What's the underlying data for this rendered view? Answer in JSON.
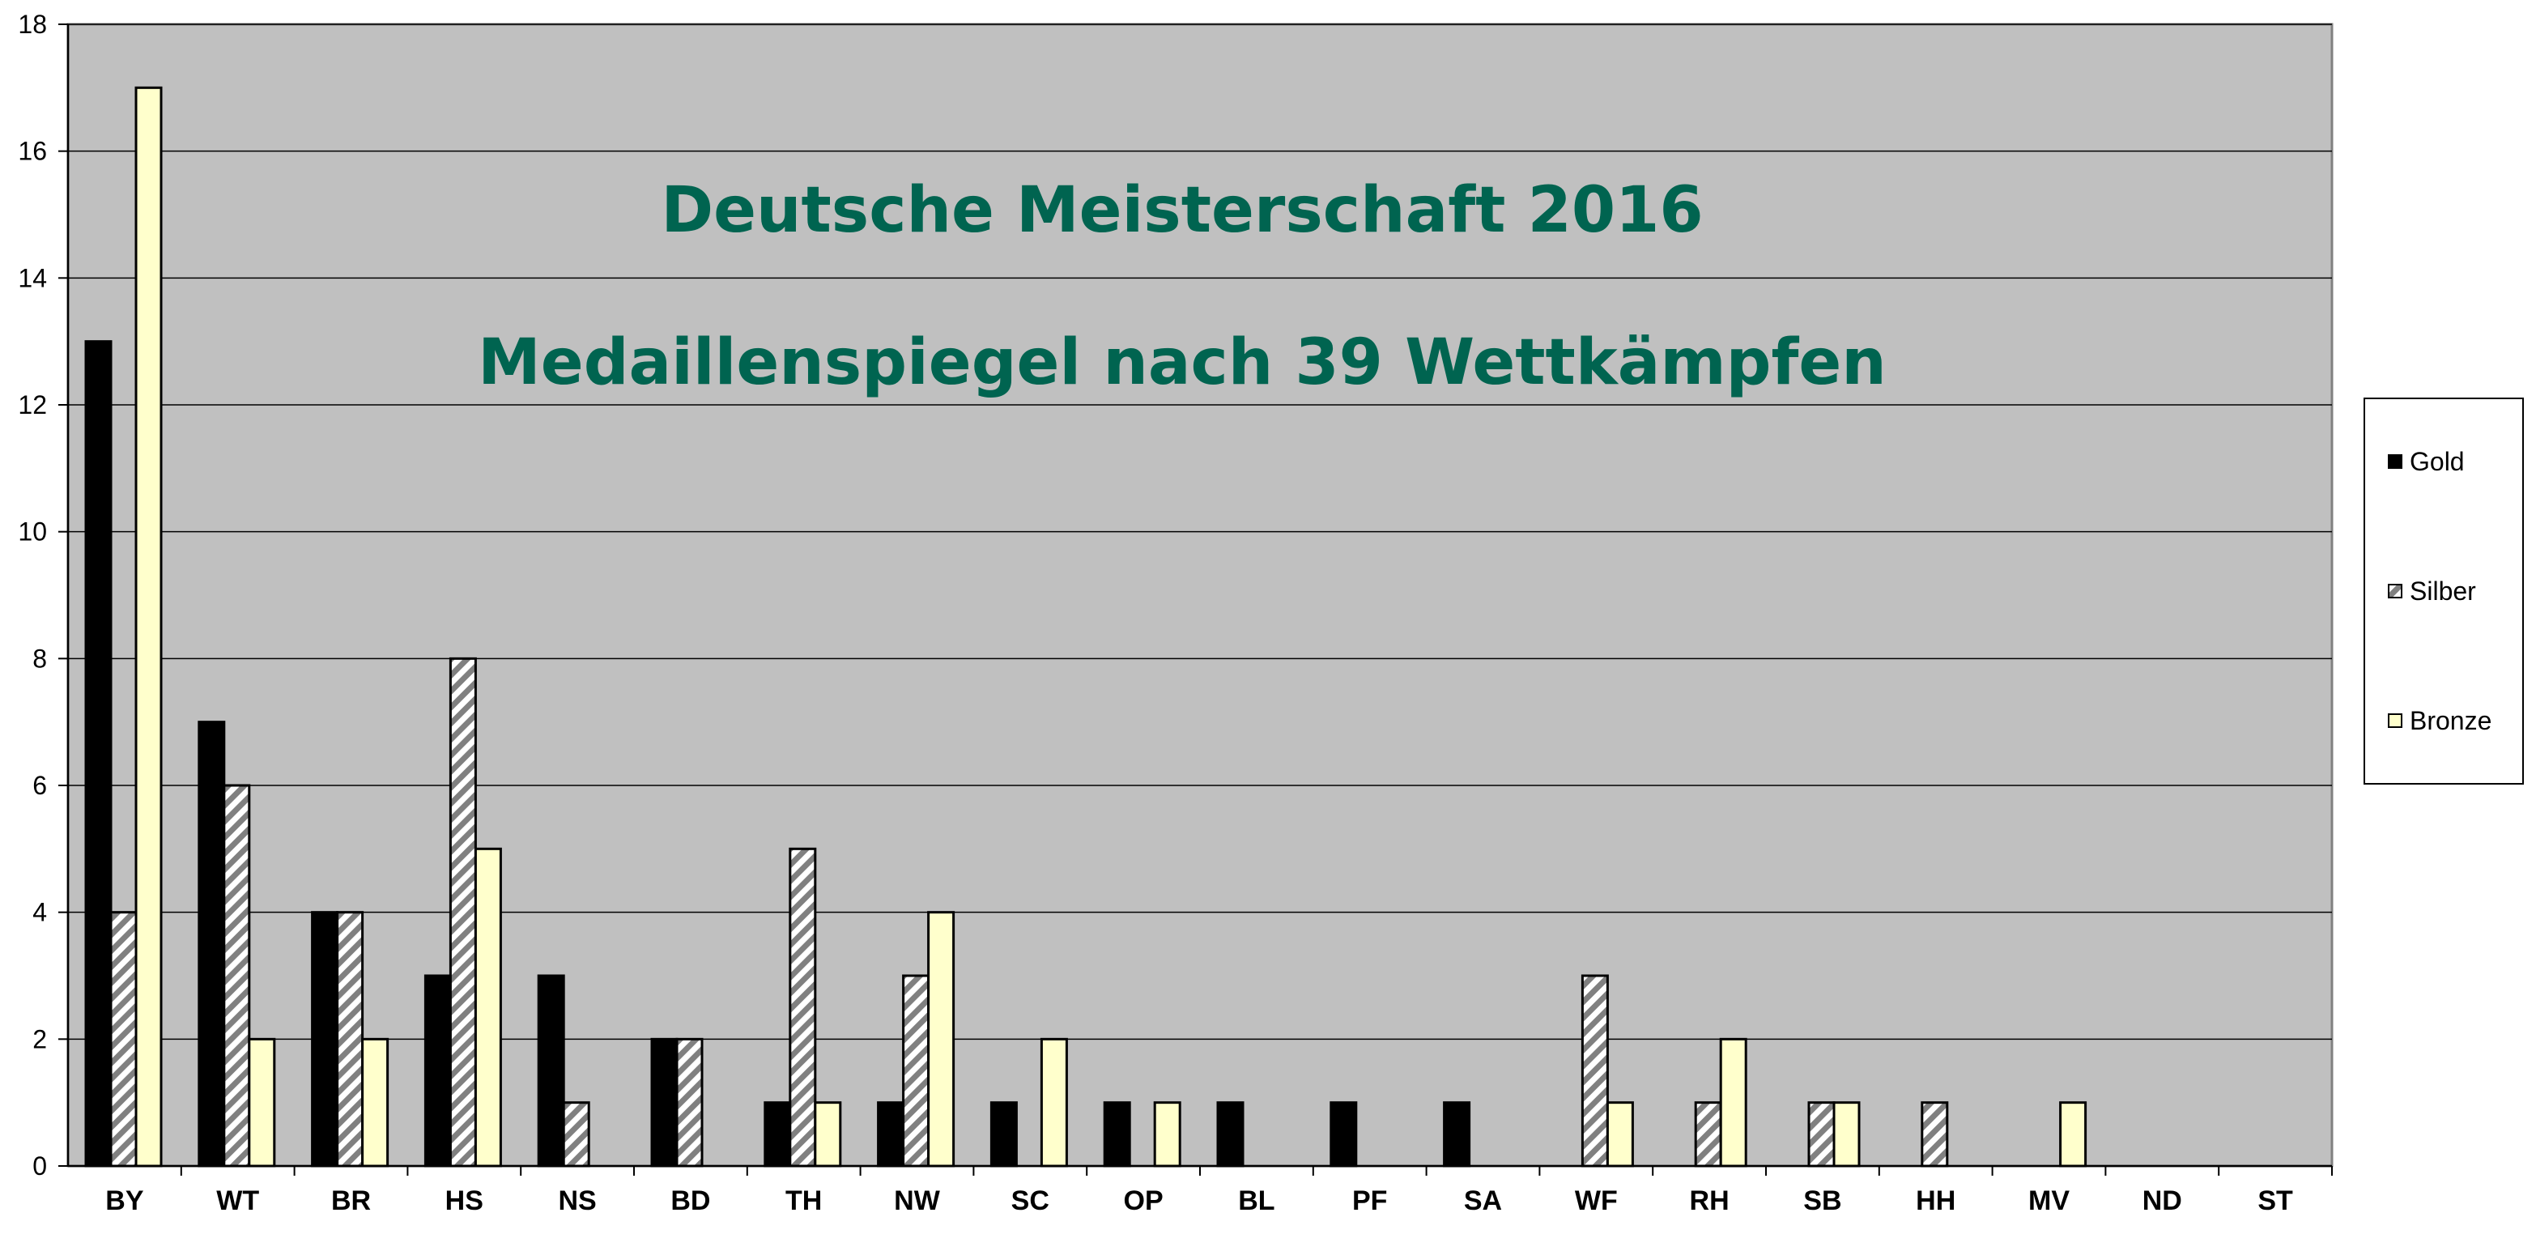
{
  "chart_data": {
    "type": "bar",
    "title": "Deutsche Meisterschaft 2016",
    "subtitle": "Medaillenspiegel nach 39 Wettkämpfen",
    "categories": [
      "BY",
      "WT",
      "BR",
      "HS",
      "NS",
      "BD",
      "TH",
      "NW",
      "SC",
      "OP",
      "BL",
      "PF",
      "SA",
      "WF",
      "RH",
      "SB",
      "HH",
      "MV",
      "ND",
      "ST"
    ],
    "series": [
      {
        "name": "Gold",
        "values": [
          13,
          7,
          4,
          3,
          3,
          2,
          1,
          1,
          1,
          1,
          1,
          1,
          1,
          0,
          0,
          0,
          0,
          0,
          0,
          0
        ],
        "color": "#000000",
        "pattern": "solid"
      },
      {
        "name": "Silber",
        "values": [
          4,
          6,
          4,
          8,
          1,
          2,
          5,
          3,
          0,
          0,
          0,
          0,
          0,
          3,
          1,
          1,
          1,
          0,
          0,
          0
        ],
        "color": "#808080",
        "pattern": "diagonal-stripes"
      },
      {
        "name": "Bronze",
        "values": [
          17,
          2,
          2,
          5,
          0,
          0,
          1,
          4,
          2,
          1,
          0,
          0,
          0,
          1,
          2,
          1,
          0,
          1,
          0,
          0
        ],
        "color": "#FFFFCC",
        "pattern": "solid"
      }
    ],
    "yticks": [
      0,
      2,
      4,
      6,
      8,
      10,
      12,
      14,
      16,
      18
    ],
    "ylim": [
      0,
      18
    ],
    "grid": true,
    "legend_position": "right",
    "plot_background": "#C0C0C0",
    "title_color": "#006450"
  }
}
